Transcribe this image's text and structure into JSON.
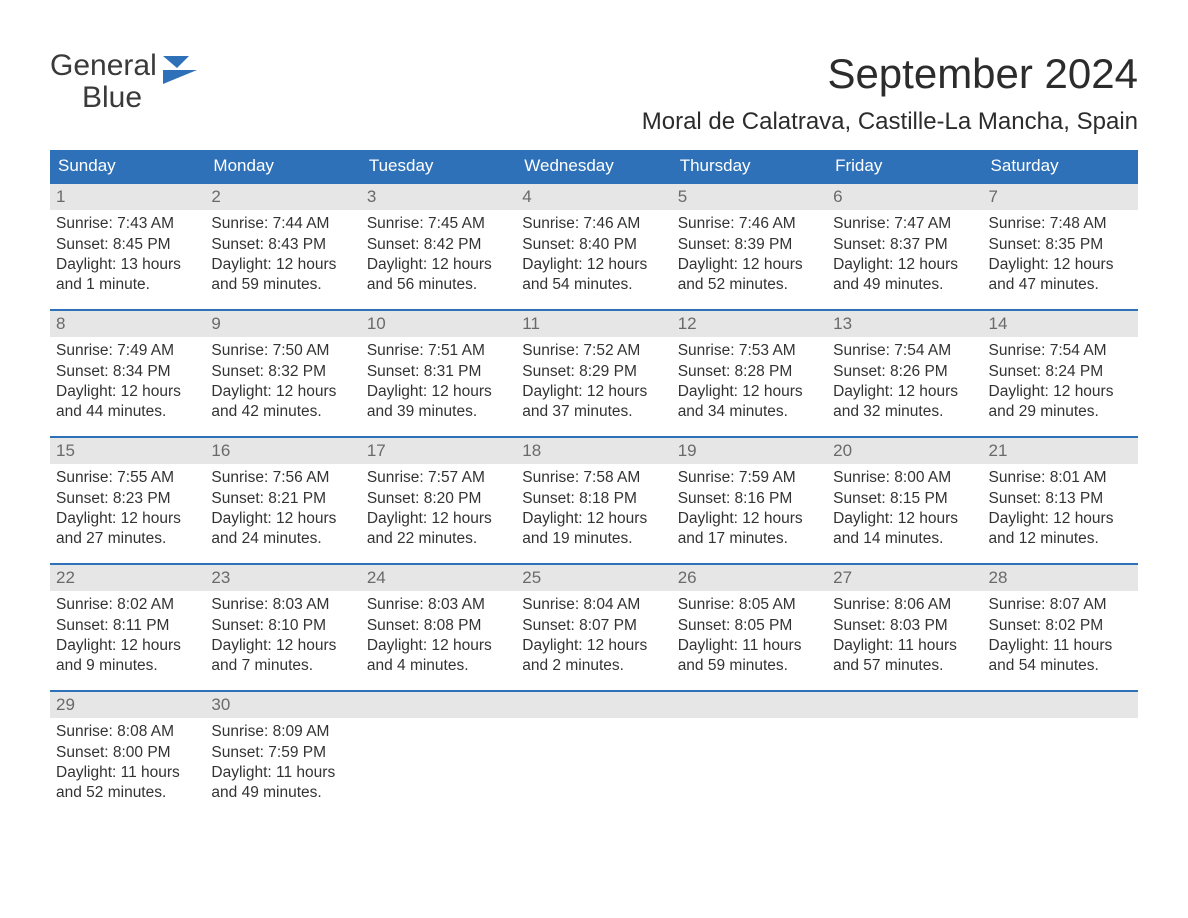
{
  "brand": {
    "word1": "General",
    "word2": "Blue",
    "icon_color": "#2f71b8"
  },
  "title": "September 2024",
  "location": "Moral de Calatrava, Castille-La Mancha, Spain",
  "colors": {
    "header_bg": "#2f71b8",
    "header_text": "#ffffff",
    "daynum_bg": "#e6e6e6",
    "daynum_text": "#6a6a6a",
    "body_text": "#333333",
    "divider": "#2f71b8",
    "page_bg": "#ffffff"
  },
  "typography": {
    "title_fontsize": 42,
    "location_fontsize": 24,
    "dow_fontsize": 17,
    "daynum_fontsize": 17,
    "body_fontsize": 15.5,
    "logo_fontsize": 30
  },
  "days_of_week": [
    "Sunday",
    "Monday",
    "Tuesday",
    "Wednesday",
    "Thursday",
    "Friday",
    "Saturday"
  ],
  "weeks": [
    [
      {
        "n": "1",
        "sunrise": "Sunrise: 7:43 AM",
        "sunset": "Sunset: 8:45 PM",
        "day1": "Daylight: 13 hours",
        "day2": "and 1 minute."
      },
      {
        "n": "2",
        "sunrise": "Sunrise: 7:44 AM",
        "sunset": "Sunset: 8:43 PM",
        "day1": "Daylight: 12 hours",
        "day2": "and 59 minutes."
      },
      {
        "n": "3",
        "sunrise": "Sunrise: 7:45 AM",
        "sunset": "Sunset: 8:42 PM",
        "day1": "Daylight: 12 hours",
        "day2": "and 56 minutes."
      },
      {
        "n": "4",
        "sunrise": "Sunrise: 7:46 AM",
        "sunset": "Sunset: 8:40 PM",
        "day1": "Daylight: 12 hours",
        "day2": "and 54 minutes."
      },
      {
        "n": "5",
        "sunrise": "Sunrise: 7:46 AM",
        "sunset": "Sunset: 8:39 PM",
        "day1": "Daylight: 12 hours",
        "day2": "and 52 minutes."
      },
      {
        "n": "6",
        "sunrise": "Sunrise: 7:47 AM",
        "sunset": "Sunset: 8:37 PM",
        "day1": "Daylight: 12 hours",
        "day2": "and 49 minutes."
      },
      {
        "n": "7",
        "sunrise": "Sunrise: 7:48 AM",
        "sunset": "Sunset: 8:35 PM",
        "day1": "Daylight: 12 hours",
        "day2": "and 47 minutes."
      }
    ],
    [
      {
        "n": "8",
        "sunrise": "Sunrise: 7:49 AM",
        "sunset": "Sunset: 8:34 PM",
        "day1": "Daylight: 12 hours",
        "day2": "and 44 minutes."
      },
      {
        "n": "9",
        "sunrise": "Sunrise: 7:50 AM",
        "sunset": "Sunset: 8:32 PM",
        "day1": "Daylight: 12 hours",
        "day2": "and 42 minutes."
      },
      {
        "n": "10",
        "sunrise": "Sunrise: 7:51 AM",
        "sunset": "Sunset: 8:31 PM",
        "day1": "Daylight: 12 hours",
        "day2": "and 39 minutes."
      },
      {
        "n": "11",
        "sunrise": "Sunrise: 7:52 AM",
        "sunset": "Sunset: 8:29 PM",
        "day1": "Daylight: 12 hours",
        "day2": "and 37 minutes."
      },
      {
        "n": "12",
        "sunrise": "Sunrise: 7:53 AM",
        "sunset": "Sunset: 8:28 PM",
        "day1": "Daylight: 12 hours",
        "day2": "and 34 minutes."
      },
      {
        "n": "13",
        "sunrise": "Sunrise: 7:54 AM",
        "sunset": "Sunset: 8:26 PM",
        "day1": "Daylight: 12 hours",
        "day2": "and 32 minutes."
      },
      {
        "n": "14",
        "sunrise": "Sunrise: 7:54 AM",
        "sunset": "Sunset: 8:24 PM",
        "day1": "Daylight: 12 hours",
        "day2": "and 29 minutes."
      }
    ],
    [
      {
        "n": "15",
        "sunrise": "Sunrise: 7:55 AM",
        "sunset": "Sunset: 8:23 PM",
        "day1": "Daylight: 12 hours",
        "day2": "and 27 minutes."
      },
      {
        "n": "16",
        "sunrise": "Sunrise: 7:56 AM",
        "sunset": "Sunset: 8:21 PM",
        "day1": "Daylight: 12 hours",
        "day2": "and 24 minutes."
      },
      {
        "n": "17",
        "sunrise": "Sunrise: 7:57 AM",
        "sunset": "Sunset: 8:20 PM",
        "day1": "Daylight: 12 hours",
        "day2": "and 22 minutes."
      },
      {
        "n": "18",
        "sunrise": "Sunrise: 7:58 AM",
        "sunset": "Sunset: 8:18 PM",
        "day1": "Daylight: 12 hours",
        "day2": "and 19 minutes."
      },
      {
        "n": "19",
        "sunrise": "Sunrise: 7:59 AM",
        "sunset": "Sunset: 8:16 PM",
        "day1": "Daylight: 12 hours",
        "day2": "and 17 minutes."
      },
      {
        "n": "20",
        "sunrise": "Sunrise: 8:00 AM",
        "sunset": "Sunset: 8:15 PM",
        "day1": "Daylight: 12 hours",
        "day2": "and 14 minutes."
      },
      {
        "n": "21",
        "sunrise": "Sunrise: 8:01 AM",
        "sunset": "Sunset: 8:13 PM",
        "day1": "Daylight: 12 hours",
        "day2": "and 12 minutes."
      }
    ],
    [
      {
        "n": "22",
        "sunrise": "Sunrise: 8:02 AM",
        "sunset": "Sunset: 8:11 PM",
        "day1": "Daylight: 12 hours",
        "day2": "and 9 minutes."
      },
      {
        "n": "23",
        "sunrise": "Sunrise: 8:03 AM",
        "sunset": "Sunset: 8:10 PM",
        "day1": "Daylight: 12 hours",
        "day2": "and 7 minutes."
      },
      {
        "n": "24",
        "sunrise": "Sunrise: 8:03 AM",
        "sunset": "Sunset: 8:08 PM",
        "day1": "Daylight: 12 hours",
        "day2": "and 4 minutes."
      },
      {
        "n": "25",
        "sunrise": "Sunrise: 8:04 AM",
        "sunset": "Sunset: 8:07 PM",
        "day1": "Daylight: 12 hours",
        "day2": "and 2 minutes."
      },
      {
        "n": "26",
        "sunrise": "Sunrise: 8:05 AM",
        "sunset": "Sunset: 8:05 PM",
        "day1": "Daylight: 11 hours",
        "day2": "and 59 minutes."
      },
      {
        "n": "27",
        "sunrise": "Sunrise: 8:06 AM",
        "sunset": "Sunset: 8:03 PM",
        "day1": "Daylight: 11 hours",
        "day2": "and 57 minutes."
      },
      {
        "n": "28",
        "sunrise": "Sunrise: 8:07 AM",
        "sunset": "Sunset: 8:02 PM",
        "day1": "Daylight: 11 hours",
        "day2": "and 54 minutes."
      }
    ],
    [
      {
        "n": "29",
        "sunrise": "Sunrise: 8:08 AM",
        "sunset": "Sunset: 8:00 PM",
        "day1": "Daylight: 11 hours",
        "day2": "and 52 minutes."
      },
      {
        "n": "30",
        "sunrise": "Sunrise: 8:09 AM",
        "sunset": "Sunset: 7:59 PM",
        "day1": "Daylight: 11 hours",
        "day2": "and 49 minutes."
      },
      null,
      null,
      null,
      null,
      null
    ]
  ]
}
